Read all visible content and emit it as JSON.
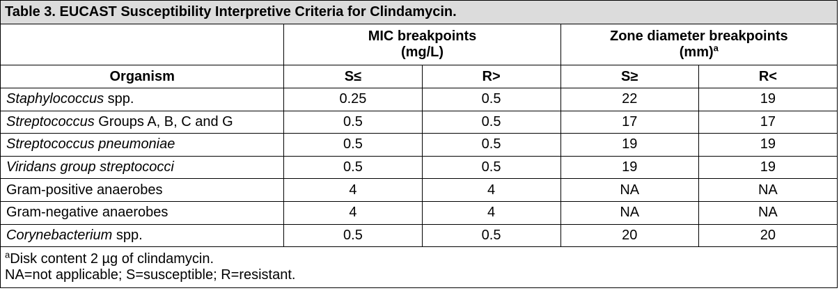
{
  "title": "Table 3. EUCAST Susceptibility Interpretive Criteria for Clindamycin.",
  "groups": {
    "mic_line1": "MIC breakpoints",
    "mic_line2": "(mg/L)",
    "zone_line1": "Zone diameter breakpoints",
    "zone_line2": "(mm)",
    "zone_sup": "a"
  },
  "headers": {
    "organism": "Organism",
    "mic_s": "S≤",
    "mic_r": "R>",
    "zone_s": "S≥",
    "zone_r": "R<"
  },
  "rows": [
    {
      "org_italic": "Staphylococcus",
      "org_rest": " spp.",
      "mic_s": "0.25",
      "mic_r": "0.5",
      "zone_s": "22",
      "zone_r": "19"
    },
    {
      "org_italic": "Streptococcus",
      "org_rest": " Groups A, B, C and G",
      "mic_s": "0.5",
      "mic_r": "0.5",
      "zone_s": "17",
      "zone_r": "17"
    },
    {
      "org_italic": "Streptococcus pneumoniae",
      "org_rest": "",
      "mic_s": "0.5",
      "mic_r": "0.5",
      "zone_s": "19",
      "zone_r": "19"
    },
    {
      "org_italic": "Viridans group streptococci",
      "org_rest": "",
      "mic_s": "0.5",
      "mic_r": "0.5",
      "zone_s": "19",
      "zone_r": "19"
    },
    {
      "org_italic": "",
      "org_rest": "Gram-positive anaerobes",
      "mic_s": "4",
      "mic_r": "4",
      "zone_s": "NA",
      "zone_r": "NA"
    },
    {
      "org_italic": "",
      "org_rest": "Gram-negative anaerobes",
      "mic_s": "4",
      "mic_r": "4",
      "zone_s": "NA",
      "zone_r": "NA"
    },
    {
      "org_italic": "Corynebacterium",
      "org_rest": " spp.",
      "mic_s": "0.5",
      "mic_r": "0.5",
      "zone_s": "20",
      "zone_r": "20"
    }
  ],
  "footnotes": {
    "a_marker": "a",
    "a_text": "Disk content 2 µg of clindamycin.",
    "abbrev": "NA=not applicable; S=susceptible; R=resistant."
  },
  "colors": {
    "title_bg": "#dcdcdc",
    "border": "#000000"
  }
}
